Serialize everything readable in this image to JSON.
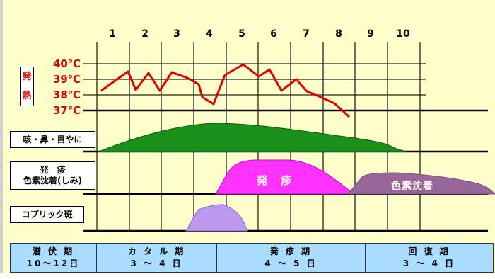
{
  "days": [
    "1",
    "2",
    "3",
    "4",
    "5",
    "6",
    "7",
    "8",
    "9",
    "10"
  ],
  "fever": {
    "label_chars": [
      "発",
      "熱"
    ],
    "temps": [
      "40℃",
      "39℃",
      "38℃",
      "37℃"
    ],
    "color": "#e00000"
  },
  "rows": {
    "cough": "咳・鼻・目やに",
    "rash_line1": "発　疹",
    "rash_line2": "色素沈着(しみ)",
    "koplik": "コプリック斑"
  },
  "shapes": {
    "rash": "発　疹",
    "pigment": "色素沈着"
  },
  "colors": {
    "background": "#ffffcc",
    "cough": "#1a8f1a",
    "rash": "#ff33ff",
    "pigment": "#996699",
    "koplik": "#bb99ee",
    "phase_bar": "#aaddff"
  },
  "phases": [
    {
      "name": "潜 伏 期",
      "duration": "10～12日"
    },
    {
      "name": "カ タ ル 期",
      "duration": "3 ～ 4 日"
    },
    {
      "name": "発 疹 期",
      "duration": "4 ～ 5 日"
    },
    {
      "name": "回 復 期",
      "duration": "3 ～ 4 日"
    }
  ]
}
